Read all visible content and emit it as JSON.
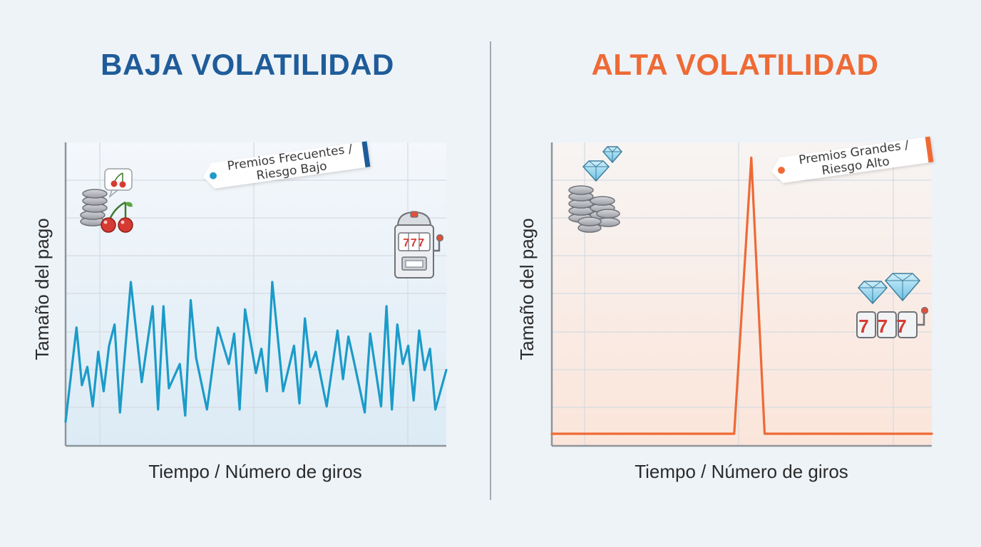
{
  "left_panel": {
    "title": "BAJA VOLATILIDAD",
    "ylabel": "Tamaño del pago",
    "xlabel": "Tiempo / Número de giros",
    "tag_line1": "Premios Frecuentes /",
    "tag_line2": "Riesgo Bajo",
    "slot_digits": "777",
    "accent": "#1b9bc9",
    "title_color": "#1f5c99"
  },
  "right_panel": {
    "title": "ALTA VOLATILIDAD",
    "ylabel": "Tamaño del pago",
    "xlabel": "Tiempo / Número de giros",
    "tag_line1": "Premios Grandes /",
    "tag_line2": "Riesgo Alto",
    "slot_digits": "777",
    "accent": "#ee6a35",
    "title_color": "#ee6a35"
  },
  "chart_data": [
    {
      "type": "line",
      "title": "BAJA VOLATILIDAD",
      "xlabel": "Tiempo / Número de giros",
      "ylabel": "Tamaño del pago",
      "grid": true,
      "xlim": [
        0,
        70
      ],
      "ylim": [
        0,
        100
      ],
      "x": [
        0,
        2,
        3,
        4,
        5,
        6,
        7,
        8,
        9,
        10,
        12,
        14,
        16,
        17,
        18,
        19,
        21,
        22,
        23,
        24,
        26,
        28,
        30,
        31,
        32,
        33,
        35,
        36,
        37,
        38,
        40,
        42,
        43,
        44,
        45,
        46,
        48,
        50,
        51,
        52,
        53,
        55,
        56,
        58,
        59,
        60,
        61,
        62,
        63,
        64,
        65,
        66,
        67,
        68,
        70
      ],
      "values": [
        8,
        39,
        20,
        26,
        13,
        31,
        18,
        33,
        40,
        11,
        54,
        21,
        46,
        12,
        46,
        19,
        27,
        10,
        48,
        29,
        12,
        39,
        27,
        37,
        12,
        45,
        24,
        32,
        18,
        54,
        18,
        33,
        14,
        42,
        26,
        31,
        13,
        38,
        22,
        36,
        28,
        11,
        37,
        13,
        46,
        12,
        40,
        27,
        33,
        15,
        38,
        25,
        32,
        12,
        25
      ],
      "series": [
        {
          "name": "",
          "color": "#1b9bc9"
        }
      ]
    },
    {
      "type": "line",
      "title": "ALTA VOLATILIDAD",
      "xlabel": "Tiempo / Número de giros",
      "ylabel": "Tamaño del pago",
      "grid": true,
      "xlim": [
        0,
        100
      ],
      "ylim": [
        0,
        100
      ],
      "x": [
        0,
        48,
        52.5,
        56,
        100
      ],
      "values": [
        4,
        4,
        95,
        4,
        4
      ],
      "series": [
        {
          "name": "",
          "color": "#ee6a35"
        }
      ]
    }
  ]
}
